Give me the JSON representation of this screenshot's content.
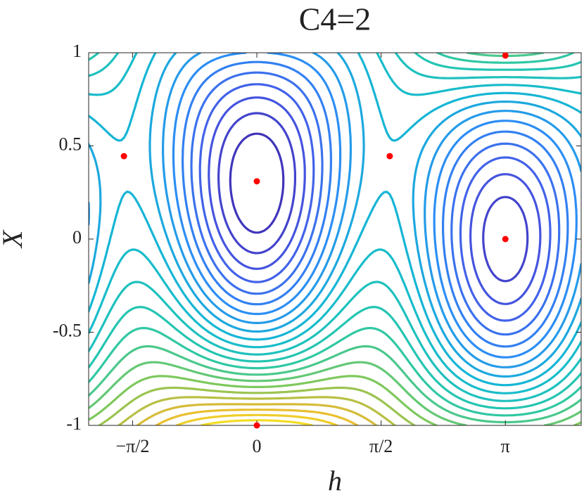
{
  "chart_data": {
    "type": "contour",
    "title": "C4=2",
    "x_label": "h",
    "y_label": "X",
    "xlim": [
      -2.126,
      4.1
    ],
    "ylim": [
      -1,
      1
    ],
    "xticks": [
      {
        "value": -1.5708,
        "label": "−π/2"
      },
      0,
      {
        "value": 1.5708,
        "label": "π/2"
      },
      {
        "value": 3.1416,
        "label": "π"
      }
    ],
    "yticks": [
      -1,
      -0.5,
      0,
      0.5,
      1
    ],
    "points": {
      "color": "#ff0000",
      "x": [
        -1.68,
        1.68,
        0,
        3.1416,
        3.1416,
        0
      ],
      "y": [
        0.445,
        0.445,
        0.31,
        0.985,
        0,
        -1
      ]
    }
  }
}
